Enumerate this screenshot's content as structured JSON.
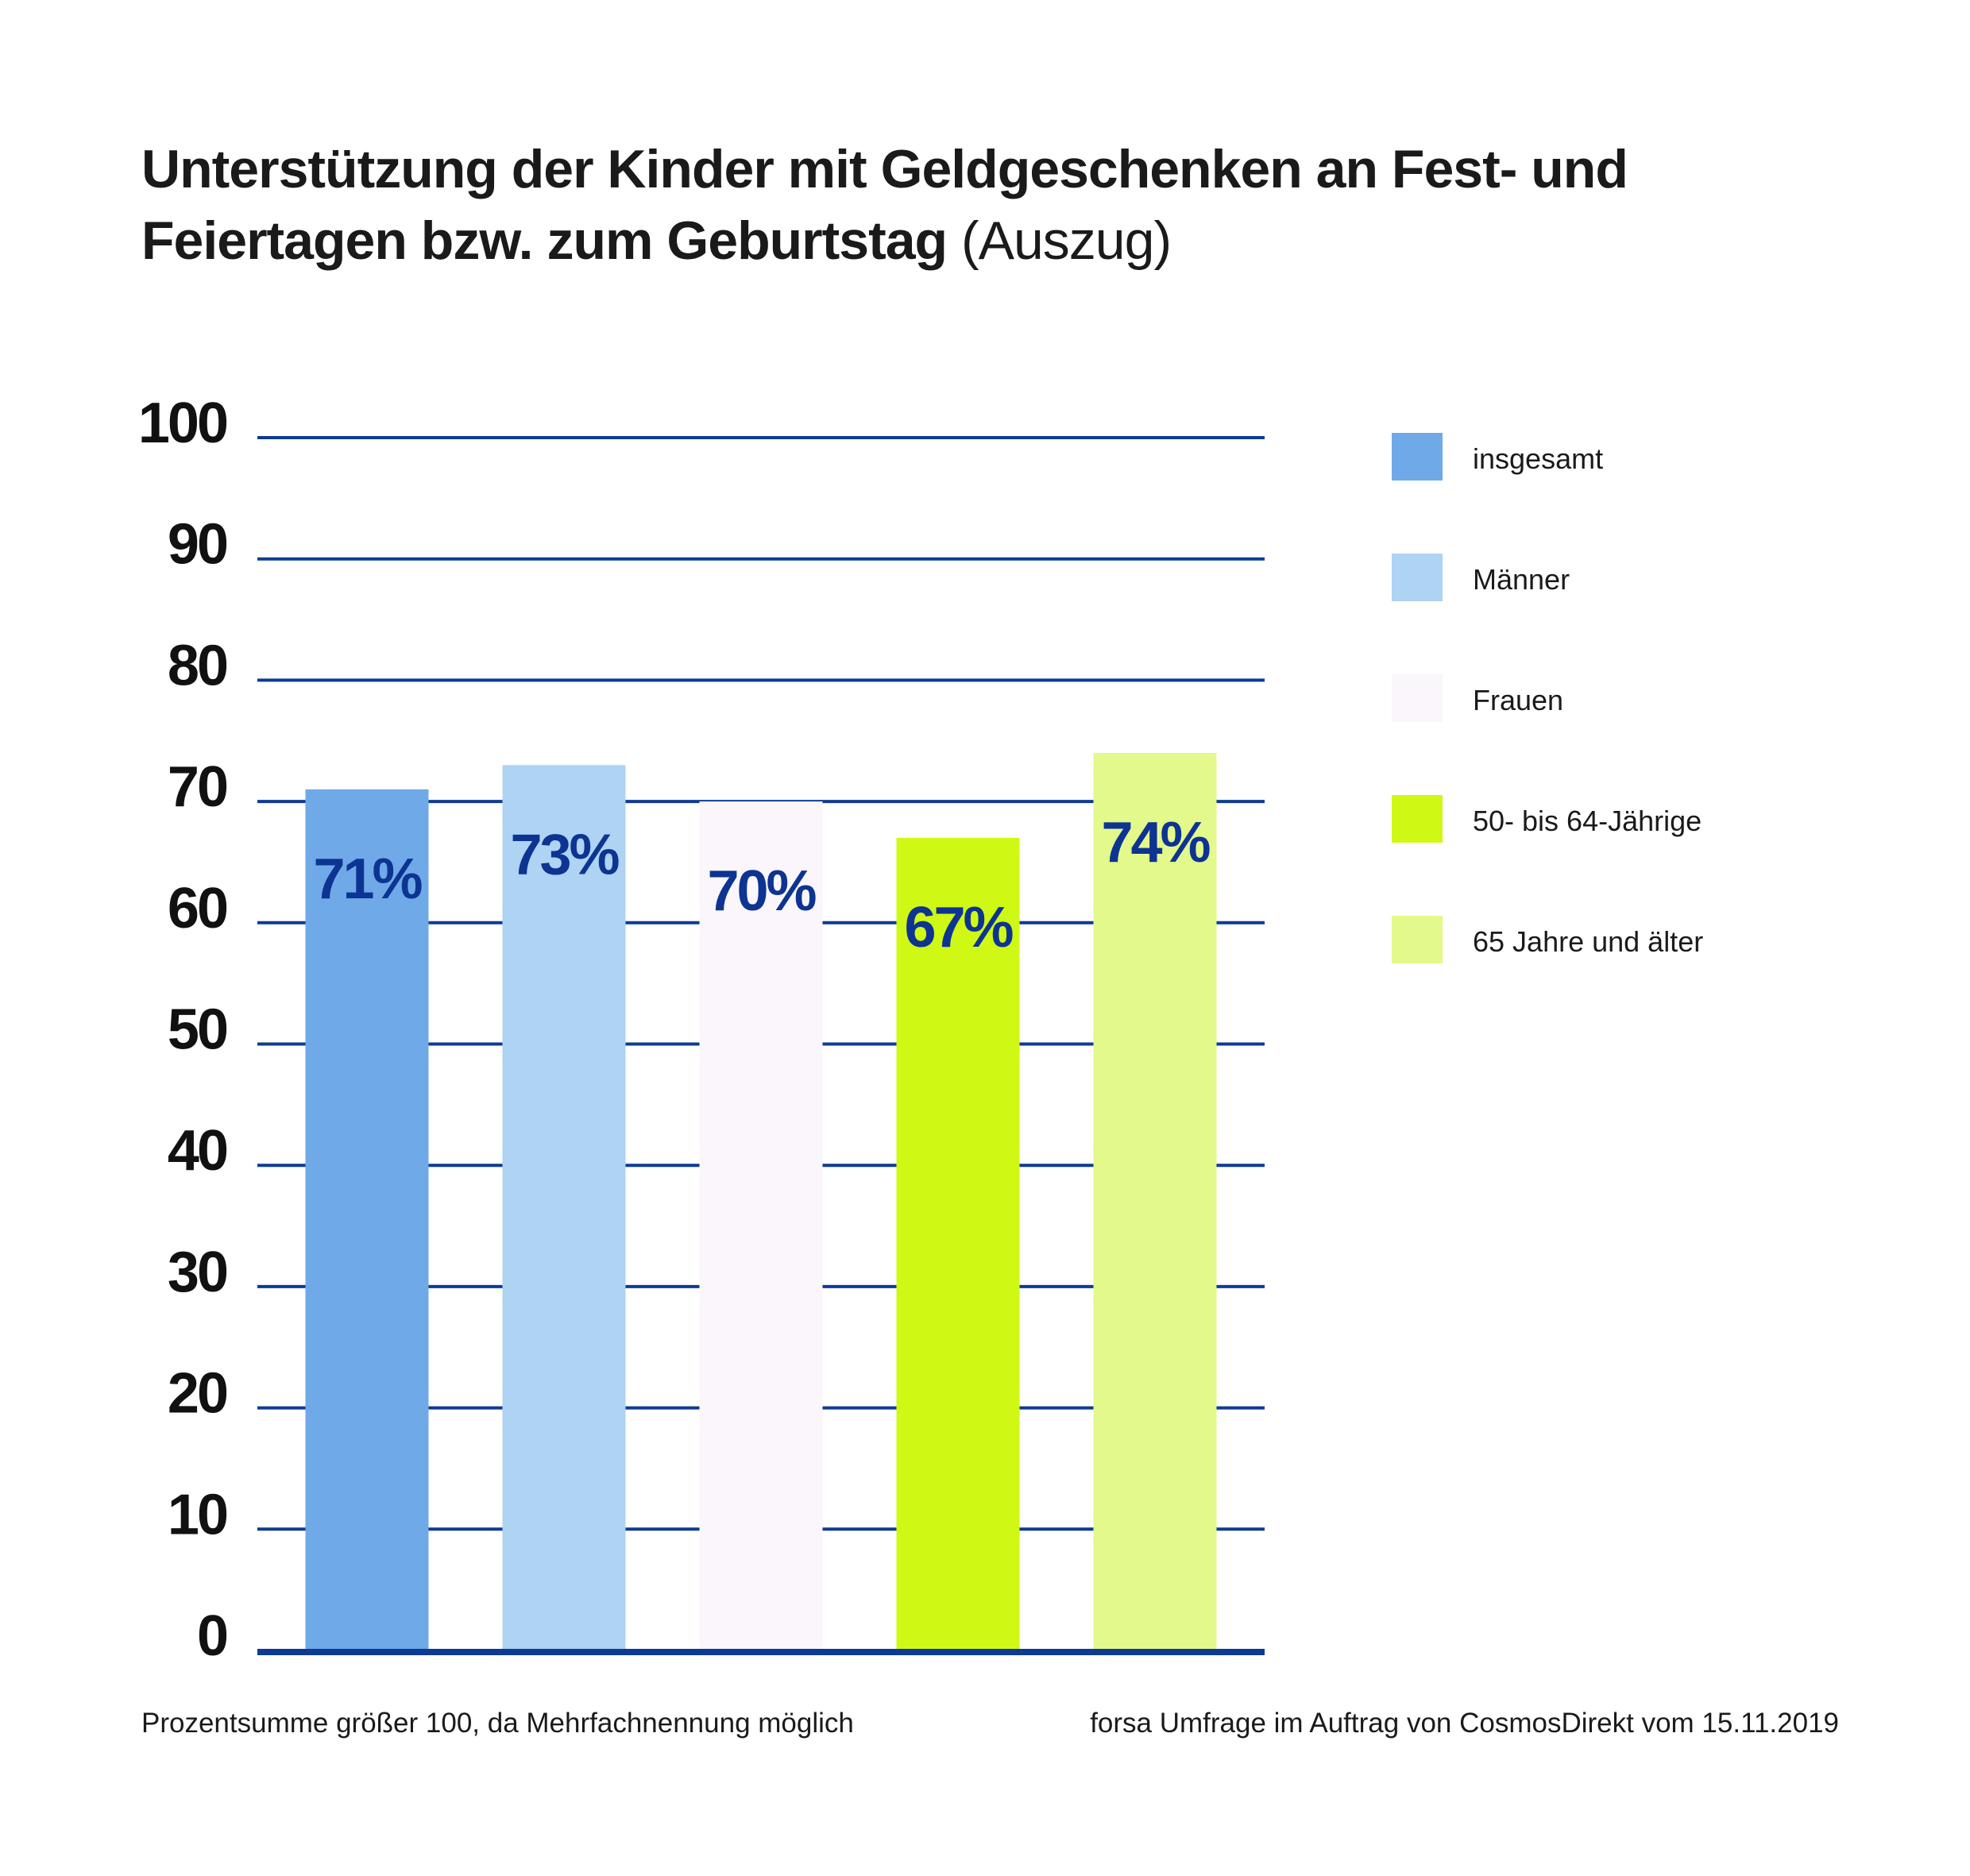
{
  "title": {
    "main": "Unterstützung der Kinder mit Geldgeschenken an Fest- und Feiertagen bzw. zum Geburtstag",
    "sub": "(Auszug)"
  },
  "chart_data": {
    "type": "bar",
    "title": "Unterstützung der Kinder mit Geldgeschenken an Fest- und Feiertagen bzw. zum Geburtstag (Auszug)",
    "categories": [
      "insgesamt",
      "Männer",
      "Frauen",
      "50- bis 64-Jährige",
      "65 Jahre und älter"
    ],
    "values": [
      71,
      73,
      70,
      67,
      74
    ],
    "value_labels": [
      "71%",
      "73%",
      "70%",
      "67%",
      "74%"
    ],
    "colors": [
      "#6fa9e8",
      "#aed3f3",
      "#fbf6fb",
      "#cff914",
      "#e4f98b"
    ],
    "ylim": [
      0,
      100
    ],
    "yticks": [
      0,
      10,
      20,
      30,
      40,
      50,
      60,
      70,
      80,
      90,
      100
    ],
    "xlabel": "",
    "ylabel": "",
    "grid": true,
    "grid_color": "#0d3b94",
    "label_color": "#0d3492",
    "legend_position": "right"
  },
  "legend": {
    "items": [
      {
        "label": "insgesamt",
        "color": "#6fa9e8"
      },
      {
        "label": "Männer",
        "color": "#aed3f3"
      },
      {
        "label": "Frauen",
        "color": "#fbf6fb"
      },
      {
        "label": "50- bis 64-Jährige",
        "color": "#cff914"
      },
      {
        "label": "65 Jahre und älter",
        "color": "#e4f98b"
      }
    ]
  },
  "footnotes": {
    "left": "Prozentsumme größer 100, da Mehrfachnennung möglich",
    "right": "forsa Umfrage im Auftrag von CosmosDirekt vom 15.11.2019"
  }
}
